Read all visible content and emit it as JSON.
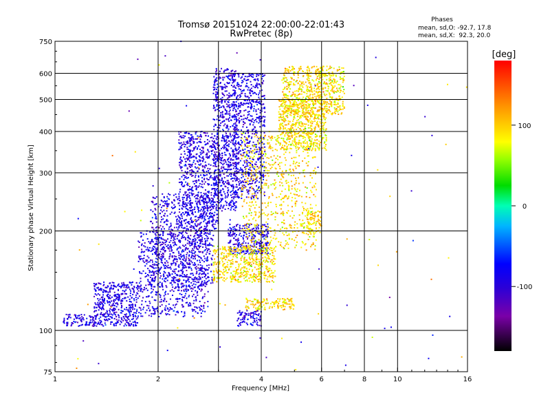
{
  "header": {
    "title": "Tromsø 20151024 22:00:00-22:01:43",
    "subtitle": "RwPretec (8p)"
  },
  "phase_info": {
    "heading": "Phases",
    "line_o": "mean, sd,O: -92.7, 17.8",
    "line_x": "mean, sd,X:  92.3, 20.0"
  },
  "chart_data": {
    "type": "scatter",
    "title": "Tromsø 20151024 22:00:00-22:01:43",
    "subtitle": "RwPretec (8p)",
    "xlabel": "Frequency [MHz]",
    "ylabel": "Stationary phase Virtual Height [km]",
    "x_scale": "log",
    "y_scale": "log",
    "xlim": [
      1,
      16
    ],
    "ylim": [
      75,
      750
    ],
    "x_ticks": [
      1,
      2,
      4,
      6,
      8,
      10,
      16
    ],
    "x_tick_labels": [
      "1",
      "2",
      "4",
      "6",
      "8",
      "10",
      "16"
    ],
    "x_grid_lines": [
      2,
      3,
      4,
      6,
      8,
      10
    ],
    "y_ticks": [
      75,
      100,
      200,
      300,
      400,
      500,
      600,
      750
    ],
    "y_tick_labels": [
      "75",
      "100",
      "200",
      "300",
      "400",
      "500",
      "600",
      "750"
    ],
    "y_grid_lines": [
      100,
      200,
      300,
      400,
      500,
      600
    ],
    "grid": true,
    "colorbar": {
      "label": "[deg]",
      "range": [
        -180,
        180
      ],
      "ticks": [
        100,
        0,
        -100
      ],
      "tick_labels": [
        "100",
        "0",
        "-100"
      ]
    },
    "series": [
      {
        "name": "O-mode",
        "phase_mean": -92.7,
        "phase_sd": 17.8,
        "clusters": [
          {
            "x": [
              1.05,
              1.75
            ],
            "y": [
              103,
              112
            ]
          },
          {
            "x": [
              1.3,
              1.75
            ],
            "y": [
              110,
              140
            ]
          },
          {
            "x": [
              1.75,
              2.8
            ],
            "y": [
              110,
              200
            ]
          },
          {
            "x": [
              1.9,
              2.9
            ],
            "y": [
              135,
              260
            ]
          },
          {
            "x": [
              2.3,
              3.0
            ],
            "y": [
              200,
              400
            ]
          },
          {
            "x": [
              2.9,
              3.4
            ],
            "y": [
              230,
              620
            ]
          },
          {
            "x": [
              3.3,
              4.1
            ],
            "y": [
              250,
              600
            ]
          },
          {
            "x": [
              3.4,
              4.0
            ],
            "y": [
              103,
              115
            ]
          },
          {
            "x": [
              3.2,
              4.2
            ],
            "y": [
              170,
              210
            ]
          }
        ]
      },
      {
        "name": "X-mode",
        "phase_mean": 92.3,
        "phase_sd": 20.0,
        "clusters": [
          {
            "x": [
              2.9,
              4.4
            ],
            "y": [
              140,
              180
            ]
          },
          {
            "x": [
              3.5,
              5.8
            ],
            "y": [
              175,
              400
            ]
          },
          {
            "x": [
              4.5,
              6.2
            ],
            "y": [
              350,
              500
            ]
          },
          {
            "x": [
              4.6,
              7.0
            ],
            "y": [
              450,
              630
            ]
          },
          {
            "x": [
              3.6,
              5.0
            ],
            "y": [
              115,
              125
            ]
          },
          {
            "x": [
              5.4,
              6.0
            ],
            "y": [
              195,
              230
            ]
          }
        ]
      }
    ]
  }
}
